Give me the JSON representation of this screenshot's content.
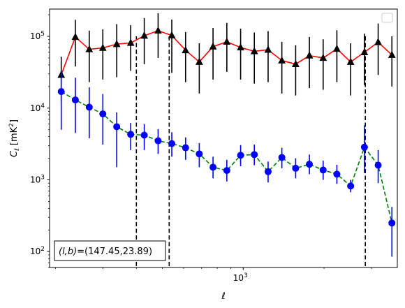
{
  "chart_data": {
    "type": "scatter",
    "title": "",
    "xlabel": "ℓ",
    "ylabel": "C_ℓ [mK²]",
    "xscale": "log",
    "yscale": "log",
    "xlim": [
      190,
      3750
    ],
    "ylim": [
      60,
      240000
    ],
    "x_ticks": [
      {
        "value": 1000,
        "base": "10",
        "exp": "3"
      }
    ],
    "y_ticks": [
      {
        "value": 100,
        "base": "10",
        "exp": "2"
      },
      {
        "value": 1000,
        "base": "10",
        "exp": "3"
      },
      {
        "value": 10000,
        "base": "10",
        "exp": "4"
      },
      {
        "value": 100000,
        "base": "10",
        "exp": "5"
      }
    ],
    "grid": false,
    "legend": {
      "placement": "top-right",
      "entries": []
    },
    "vlines": [
      400,
      530,
      2850
    ],
    "annotation": {
      "prefix": "(l,b)",
      "text": "=(147.45,23.89)",
      "placement": "bottom-left"
    },
    "series": [
      {
        "marker": "triangle",
        "color": "#000000",
        "line_color": "#ff0000",
        "line_style": "solid",
        "x": [
          210,
          237,
          267,
          300,
          338,
          381,
          428,
          482,
          542,
          610,
          686,
          772,
          869,
          978,
          1100,
          1238,
          1393,
          1568,
          1764,
          1985,
          2233,
          2513,
          2828,
          3182,
          3580
        ],
        "y": [
          29000,
          98000,
          66000,
          69000,
          78000,
          81000,
          102000,
          120000,
          103000,
          64000,
          44000,
          72000,
          84000,
          70000,
          62000,
          65000,
          46000,
          41000,
          54000,
          50000,
          67000,
          44000,
          60000,
          83000,
          55000
        ],
        "err_low": [
          17000,
          60000,
          43000,
          44000,
          51000,
          48000,
          61000,
          70000,
          72000,
          41000,
          28000,
          47000,
          52000,
          45000,
          40000,
          42000,
          30000,
          26000,
          35000,
          32000,
          44000,
          29000,
          39000,
          54000,
          35000
        ],
        "err_high": [
          23000,
          72000,
          54000,
          56000,
          70000,
          62000,
          78000,
          90000,
          68000,
          51000,
          36000,
          59000,
          70000,
          58000,
          51000,
          53000,
          38000,
          34000,
          44000,
          41000,
          55000,
          36000,
          49000,
          68000,
          45000
        ]
      },
      {
        "marker": "circle",
        "color": "#0000ff",
        "line_color": "#008000",
        "line_style": "dashed",
        "x": [
          210,
          237,
          267,
          300,
          338,
          381,
          428,
          482,
          542,
          610,
          686,
          772,
          869,
          978,
          1100,
          1238,
          1393,
          1568,
          1764,
          1985,
          2233,
          2513,
          2828,
          3182,
          3580
        ],
        "y": [
          17000,
          13000,
          10300,
          8300,
          5500,
          4300,
          4200,
          3500,
          3200,
          2800,
          2300,
          1500,
          1350,
          2200,
          2250,
          1300,
          2050,
          1450,
          1650,
          1370,
          1200,
          820,
          2850,
          1600,
          250
        ],
        "err_low": [
          12000,
          8500,
          6500,
          5200,
          4000,
          1700,
          1600,
          1200,
          1100,
          900,
          800,
          450,
          400,
          650,
          650,
          380,
          600,
          400,
          450,
          370,
          320,
          150,
          1600,
          700,
          165
        ],
        "err_high": [
          15000,
          13500,
          9200,
          7400,
          3200,
          1900,
          1800,
          1600,
          1400,
          1100,
          950,
          600,
          550,
          850,
          850,
          500,
          750,
          550,
          600,
          480,
          420,
          180,
          2900,
          1000,
          170
        ]
      }
    ]
  }
}
